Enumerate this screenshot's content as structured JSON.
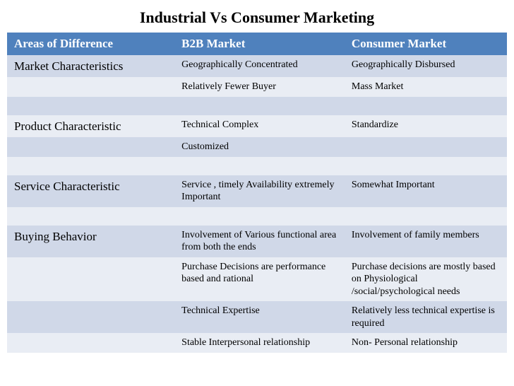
{
  "title": "Industrial Vs Consumer Marketing",
  "columns": [
    "Areas of  Difference",
    "B2B  Market",
    "Consumer Market"
  ],
  "rows": [
    {
      "band": "a",
      "category": "Market Characteristics",
      "b2b": "Geographically Concentrated",
      "consumer": "Geographically Disbursed"
    },
    {
      "band": "b",
      "category": "",
      "b2b": "Relatively Fewer Buyer",
      "consumer": "Mass Market"
    },
    {
      "band": "a",
      "category": "",
      "b2b": "",
      "consumer": "",
      "spacer": true
    },
    {
      "band": "b",
      "category": "Product Characteristic",
      "b2b": "Technical Complex",
      "consumer": "Standardize"
    },
    {
      "band": "a",
      "category": "",
      "b2b": "Customized",
      "consumer": ""
    },
    {
      "band": "b",
      "category": "",
      "b2b": "",
      "consumer": "",
      "spacer": true
    },
    {
      "band": "a",
      "category": "Service Characteristic",
      "b2b": "Service , timely Availability extremely Important",
      "consumer": "Somewhat Important"
    },
    {
      "band": "b",
      "category": "",
      "b2b": "",
      "consumer": "",
      "spacer": true
    },
    {
      "band": "a",
      "category": "Buying Behavior",
      "b2b": "Involvement of Various functional area from both the ends",
      "consumer": "Involvement of family  members"
    },
    {
      "band": "b",
      "category": "",
      "b2b": "Purchase Decisions are  performance based and rational",
      "consumer": "Purchase decisions are mostly based on Physiological /social/psychological needs"
    },
    {
      "band": "a",
      "category": "",
      "b2b": "Technical Expertise",
      "consumer": "Relatively less technical expertise is required"
    },
    {
      "band": "b",
      "category": "",
      "b2b": "Stable Interpersonal relationship",
      "consumer": "Non- Personal relationship"
    }
  ]
}
